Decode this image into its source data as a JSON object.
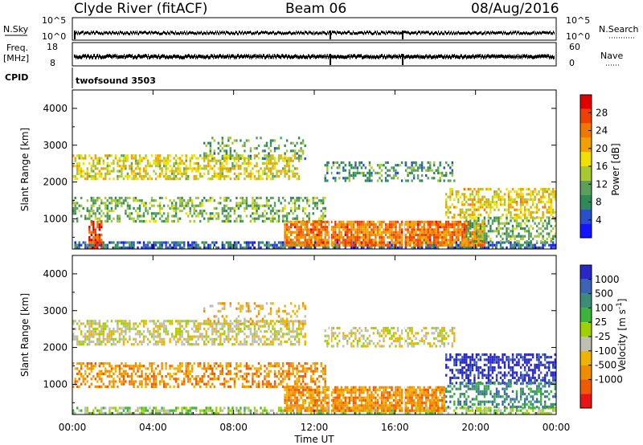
{
  "header": {
    "station": "Clyde River (fitACF)",
    "beam": "Beam 06",
    "date": "08/Aug/2016"
  },
  "strip_panels": {
    "nsky_label": "N.Sky",
    "nsearch_label": "N.Search",
    "freq_label_line1": "Freq.",
    "freq_label_line2": "[MHz]",
    "nave_label": "Nave",
    "cpid_label": "CPID",
    "cpid_value": "twofsound 3503",
    "noise_left_ticks": [
      "10^5",
      "10^0"
    ],
    "noise_right_ticks": [
      "10^5",
      "10^0"
    ],
    "freq_left_ticks": [
      "18",
      "8"
    ],
    "nave_right_ticks": [
      "60",
      "0"
    ]
  },
  "colors": {
    "power": [
      "#1414ff",
      "#2850c8",
      "#2e8b57",
      "#5aa05a",
      "#a8c832",
      "#f0e000",
      "#f0a000",
      "#f07800",
      "#f04000",
      "#e00000"
    ],
    "velocity": [
      "#2828c8",
      "#3c64b4",
      "#3c8c78",
      "#3cb43c",
      "#a0d000",
      "#bebeb4",
      "#f0b400",
      "#f08c00",
      "#f05a00",
      "#e61414"
    ],
    "axes": "#000000"
  },
  "chart_data": [
    {
      "type": "heatmap",
      "name": "power-panel",
      "ylabel": "Slant Range [km]",
      "x_ticks": [
        "00:00",
        "04:00",
        "08:00",
        "12:00",
        "16:00",
        "20:00",
        "00:00"
      ],
      "x_range_hours": [
        0,
        24
      ],
      "y_range_km": [
        180,
        4500
      ],
      "y_ticks": [
        1000,
        2000,
        3000,
        4000
      ],
      "colorbar_label": "Power [dB]",
      "colorbar_ticks": [
        "28",
        "24",
        "20",
        "16",
        "12",
        "8",
        "4"
      ],
      "colorbar_range": [
        0,
        32
      ],
      "bands": [
        {
          "t0": 0.0,
          "t1": 11.2,
          "r0": 2050,
          "r1": 2700,
          "density": 0.55,
          "v": 17
        },
        {
          "t0": 0.0,
          "t1": 12.5,
          "r0": 900,
          "r1": 1600,
          "density": 0.45,
          "v": 12
        },
        {
          "t0": 0.0,
          "t1": 24.0,
          "r0": 180,
          "r1": 350,
          "density": 0.7,
          "v": 6
        },
        {
          "t0": 10.5,
          "t1": 20.5,
          "r0": 250,
          "r1": 900,
          "density": 0.85,
          "v": 24
        },
        {
          "t0": 12.5,
          "t1": 19.0,
          "r0": 2000,
          "r1": 2500,
          "density": 0.4,
          "v": 10
        },
        {
          "t0": 18.5,
          "t1": 24.0,
          "r0": 1000,
          "r1": 1800,
          "density": 0.55,
          "v": 18
        },
        {
          "t0": 19.5,
          "t1": 24.0,
          "r0": 350,
          "r1": 1000,
          "density": 0.5,
          "v": 12
        },
        {
          "t0": 6.5,
          "t1": 11.5,
          "r0": 2600,
          "r1": 3200,
          "density": 0.25,
          "v": 11
        },
        {
          "t0": 0.8,
          "t1": 1.5,
          "r0": 180,
          "r1": 900,
          "density": 0.7,
          "v": 27
        }
      ]
    },
    {
      "type": "heatmap",
      "name": "velocity-panel",
      "ylabel": "Slant Range [km]",
      "xlabel": "Time UT",
      "x_ticks": [
        "00:00",
        "04:00",
        "08:00",
        "12:00",
        "16:00",
        "20:00",
        "00:00"
      ],
      "x_range_hours": [
        0,
        24
      ],
      "y_range_km": [
        180,
        4500
      ],
      "y_ticks": [
        1000,
        2000,
        3000,
        4000
      ],
      "colorbar_label": "Velocity [m s^-1]",
      "colorbar_ticks": [
        "1000",
        "500",
        "100",
        "25",
        "-25",
        "-100",
        "-500",
        "-1000"
      ],
      "bands": [
        {
          "t0": 0.0,
          "t1": 11.5,
          "r0": 2050,
          "r1": 2700,
          "density": 0.55,
          "c": 5
        },
        {
          "t0": 0.0,
          "t1": 12.5,
          "r0": 900,
          "r1": 1600,
          "density": 0.5,
          "c": 7
        },
        {
          "t0": 0.0,
          "t1": 24.0,
          "r0": 180,
          "r1": 330,
          "density": 0.6,
          "c": 4
        },
        {
          "t0": 10.5,
          "t1": 18.5,
          "r0": 250,
          "r1": 900,
          "density": 0.8,
          "c": 7
        },
        {
          "t0": 12.5,
          "t1": 19.0,
          "r0": 2000,
          "r1": 2500,
          "density": 0.4,
          "c": 5
        },
        {
          "t0": 18.5,
          "t1": 24.0,
          "r0": 1000,
          "r1": 1800,
          "density": 0.55,
          "c": 0
        },
        {
          "t0": 18.5,
          "t1": 24.0,
          "r0": 350,
          "r1": 1000,
          "density": 0.5,
          "c": 2
        },
        {
          "t0": 6.5,
          "t1": 11.5,
          "r0": 2600,
          "r1": 3200,
          "density": 0.25,
          "c": 6
        }
      ]
    }
  ]
}
